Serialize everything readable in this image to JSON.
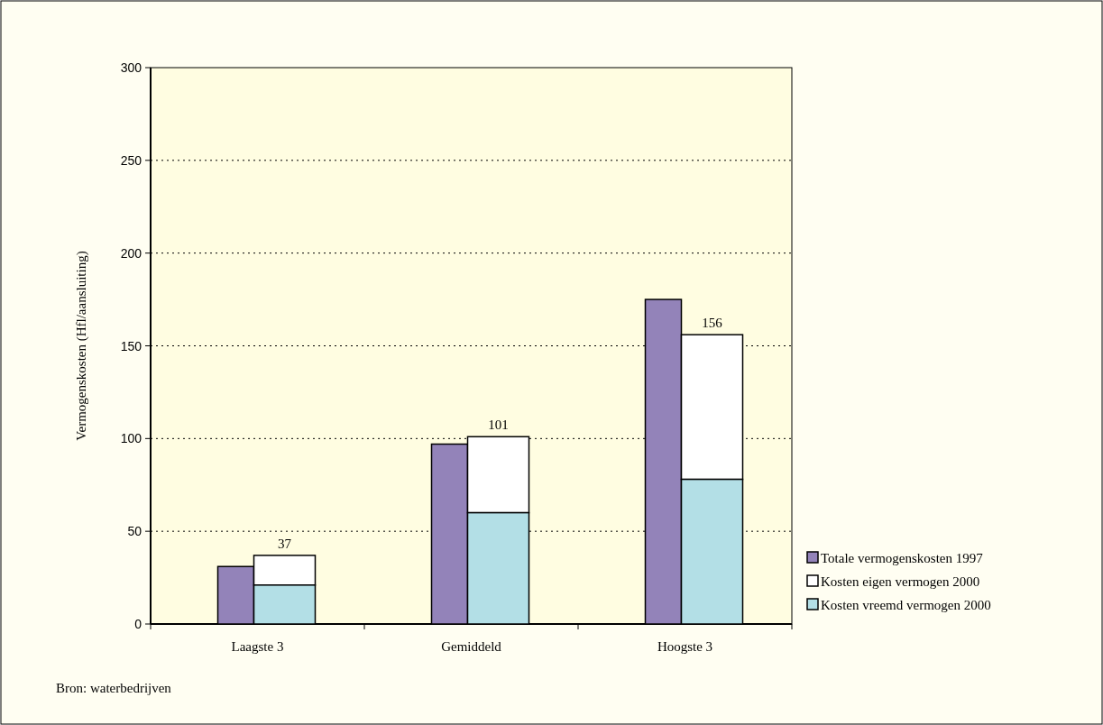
{
  "chart_data": {
    "type": "bar",
    "categories": [
      "Laagste 3",
      "Gemiddeld",
      "Hoogste 3"
    ],
    "ylabel": "Vermogenskosten (Hfl/aansluiting)",
    "ylim": [
      0,
      300
    ],
    "yticks": [
      0,
      50,
      100,
      150,
      200,
      250,
      300
    ],
    "grid": "y",
    "legend": "right",
    "series": [
      {
        "name": "Totale vermogenskosten 1997",
        "color": "#9383b9",
        "values": [
          31,
          97,
          175
        ]
      },
      {
        "name": "Kosten eigen vermogen 2000",
        "color": "#ffffff",
        "values": [
          16,
          41,
          78
        ],
        "base": [
          21,
          60,
          78
        ]
      },
      {
        "name": "Kosten vreemd vermogen 2000",
        "color": "#b3dfe6",
        "values": [
          21,
          60,
          78
        ]
      }
    ],
    "annotations": [
      {
        "text": "37",
        "x": "Laagste 3",
        "y": 37
      },
      {
        "text": "101",
        "x": "Gemiddeld",
        "y": 101
      },
      {
        "text": "156",
        "x": "Hoogste 3",
        "y": 156
      },
      "Bron: waterbedrijven"
    ]
  }
}
